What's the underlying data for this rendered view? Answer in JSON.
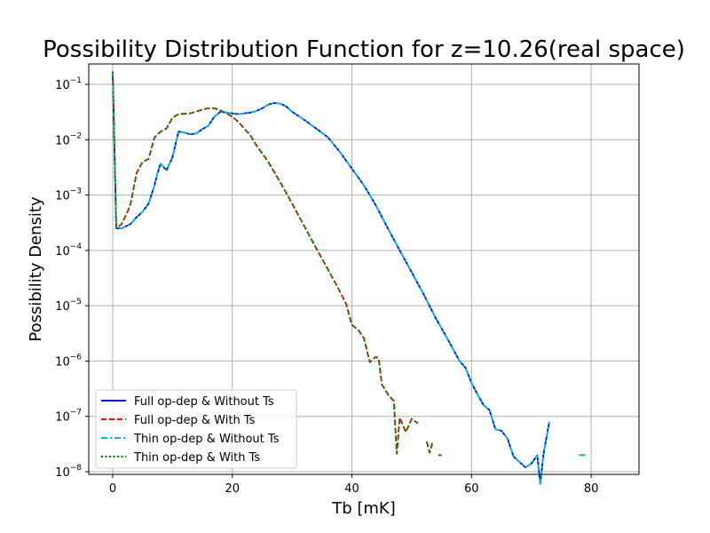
{
  "chart_data": {
    "type": "line",
    "title": "Possibility Distribution Function for z=10.26(real space)",
    "xlabel": "Tb [mK]",
    "ylabel": "Possibility Density",
    "xlim": [
      -4,
      88
    ],
    "ylim": [
      1e-08,
      0.3
    ],
    "yscale": "log",
    "grid": true,
    "legend_position": "lower-left",
    "x_ticks": [
      {
        "value": 0,
        "label": "0"
      },
      {
        "value": 20,
        "label": "20"
      },
      {
        "value": 40,
        "label": "40"
      },
      {
        "value": 60,
        "label": "60"
      },
      {
        "value": 80,
        "label": "80"
      }
    ],
    "y_ticks": [
      {
        "value": 1e-08,
        "mant": "10",
        "exp": "−8"
      },
      {
        "value": 1e-07,
        "mant": "10",
        "exp": "−7"
      },
      {
        "value": 1e-06,
        "mant": "10",
        "exp": "−6"
      },
      {
        "value": 1e-05,
        "mant": "10",
        "exp": "−5"
      },
      {
        "value": 0.0001,
        "mant": "10",
        "exp": "−4"
      },
      {
        "value": 0.001,
        "mant": "10",
        "exp": "−3"
      },
      {
        "value": 0.01,
        "mant": "10",
        "exp": "−2"
      },
      {
        "value": 0.1,
        "mant": "10",
        "exp": "−1"
      }
    ],
    "curves": {
      "A": [
        [
          [
            0,
            0.17
          ],
          [
            0.6,
            0.00025
          ],
          [
            1.5,
            0.00025
          ],
          [
            3,
            0.0003
          ],
          [
            4,
            0.0004
          ],
          [
            5,
            0.0005
          ],
          [
            6,
            0.0007
          ],
          [
            7,
            0.0015
          ],
          [
            7.5,
            0.0025
          ],
          [
            8,
            0.0037
          ],
          [
            9,
            0.0028
          ],
          [
            10,
            0.0048
          ],
          [
            11,
            0.014
          ],
          [
            12,
            0.0135
          ],
          [
            13,
            0.0125
          ],
          [
            14,
            0.013
          ],
          [
            15,
            0.0155
          ],
          [
            16,
            0.018
          ],
          [
            17,
            0.026
          ],
          [
            18,
            0.032
          ],
          [
            19,
            0.031
          ],
          [
            20,
            0.03
          ],
          [
            21,
            0.029
          ],
          [
            22,
            0.03
          ],
          [
            23,
            0.031
          ],
          [
            24,
            0.033
          ],
          [
            25,
            0.037
          ],
          [
            26,
            0.043
          ],
          [
            27,
            0.046
          ],
          [
            28,
            0.045
          ],
          [
            29,
            0.04
          ],
          [
            30,
            0.032
          ],
          [
            32,
            0.023
          ],
          [
            34,
            0.016
          ],
          [
            36,
            0.011
          ],
          [
            38,
            0.006
          ],
          [
            40,
            0.003
          ],
          [
            42,
            0.0015
          ],
          [
            44,
            0.00065
          ],
          [
            46,
            0.00025
          ],
          [
            48,
            0.0001
          ],
          [
            50,
            4e-05
          ],
          [
            52,
            1.6e-05
          ],
          [
            54,
            6e-06
          ],
          [
            56,
            2.5e-06
          ],
          [
            58,
            1e-06
          ],
          [
            59,
            7.5e-07
          ],
          [
            60,
            4e-07
          ],
          [
            61,
            2.5e-07
          ],
          [
            62,
            1.6e-07
          ],
          [
            63,
            1.3e-07
          ],
          [
            64,
            5.8e-08
          ],
          [
            65,
            5.5e-08
          ],
          [
            66,
            4e-08
          ],
          [
            67,
            1.9e-08
          ],
          [
            68,
            1.5e-08
          ],
          [
            69,
            1.2e-08
          ],
          [
            70,
            1.4e-08
          ],
          [
            71,
            2e-08
          ],
          [
            71.5,
            6e-09
          ],
          [
            72,
            2e-08
          ],
          [
            73,
            8e-08
          ]
        ],
        [
          [
            78,
            2e-08
          ],
          [
            79,
            2e-08
          ]
        ]
      ],
      "B": [
        [
          [
            0,
            0.17
          ],
          [
            0.6,
            0.00025
          ],
          [
            1.5,
            0.0003
          ],
          [
            2.5,
            0.0005
          ],
          [
            3,
            0.0007
          ],
          [
            4,
            0.0025
          ],
          [
            5,
            0.004
          ],
          [
            6,
            0.0045
          ],
          [
            7,
            0.011
          ],
          [
            8,
            0.014
          ],
          [
            9,
            0.016
          ],
          [
            10,
            0.025
          ],
          [
            11,
            0.029
          ],
          [
            13,
            0.03
          ],
          [
            15,
            0.035
          ],
          [
            16,
            0.037
          ],
          [
            17,
            0.037
          ],
          [
            18,
            0.034
          ],
          [
            19,
            0.03
          ],
          [
            20,
            0.026
          ],
          [
            21,
            0.021
          ],
          [
            22,
            0.016
          ],
          [
            23,
            0.012
          ],
          [
            24,
            0.008
          ],
          [
            26,
            0.004
          ],
          [
            28,
            0.0017
          ],
          [
            30,
            0.0007
          ],
          [
            32,
            0.00028
          ],
          [
            34,
            0.00011
          ],
          [
            36,
            4.5e-05
          ],
          [
            38,
            1.8e-05
          ],
          [
            39,
            1.1e-05
          ],
          [
            40,
            4.5e-06
          ],
          [
            41,
            3.7e-06
          ],
          [
            42,
            2.6e-06
          ],
          [
            43,
            9.5e-07
          ],
          [
            44,
            1.2e-06
          ],
          [
            44.5,
            1.1e-06
          ],
          [
            45,
            3.8e-07
          ],
          [
            46,
            2.5e-07
          ],
          [
            47,
            1.9e-07
          ],
          [
            47.5,
            2.1e-08
          ],
          [
            48,
            9.5e-08
          ],
          [
            49,
            5.2e-08
          ],
          [
            50,
            9e-08
          ],
          [
            51,
            7.5e-08
          ]
        ],
        [
          [
            52.5,
            3.5e-08
          ],
          [
            53,
            2.2e-08
          ],
          [
            53.5,
            3.5e-08
          ]
        ],
        [
          [
            54.5,
            2e-08
          ],
          [
            55,
            2e-08
          ]
        ]
      ]
    },
    "series": [
      {
        "name": "Full op-dep & Without Ts",
        "color": "#0000ff",
        "style": "solid",
        "curve": "A"
      },
      {
        "name": "Full op-dep & With Ts",
        "color": "#ff0000",
        "style": "dashed",
        "curve": "B"
      },
      {
        "name": "Thin op-dep & Without Ts",
        "color": "#00bfbf",
        "style": "dashdot",
        "curve": "A"
      },
      {
        "name": "Thin op-dep & With Ts",
        "color": "#008000",
        "style": "dotted",
        "curve": "B"
      }
    ]
  }
}
